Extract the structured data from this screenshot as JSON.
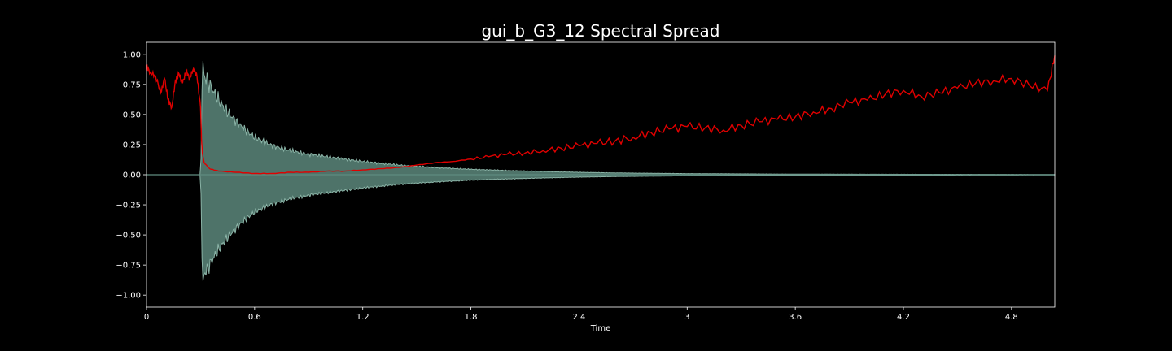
{
  "chart_data": {
    "type": "line",
    "title": "gui_b_G3_12 Spectral Spread",
    "subtitle": "",
    "xlabel": "Time",
    "ylabel": "",
    "xlim": [
      0,
      5.04
    ],
    "ylim": [
      -1.1,
      1.1
    ],
    "x_ticks": [
      0,
      0.6,
      1.2,
      1.8,
      2.4,
      3.0,
      3.6,
      4.2,
      4.8
    ],
    "x_tick_labels": [
      "0",
      "0.6",
      "1.2",
      "1.8",
      "2.4",
      "3",
      "3.6",
      "4.2",
      "4.8"
    ],
    "y_ticks": [
      1.0,
      0.75,
      0.5,
      0.25,
      0.0,
      -0.25,
      -0.5,
      -0.75,
      -1.0
    ],
    "y_tick_labels": [
      "1.00",
      "0.75",
      "0.50",
      "0.25",
      "0.00",
      "−0.25",
      "−0.50",
      "−0.75",
      "−1.00"
    ],
    "grid": false,
    "legend": "none",
    "colors": {
      "background": "#000000",
      "axes": "#ffffff",
      "waveform": "#5f8c80",
      "waveform_envelope": "#8ab3a6",
      "spread_line": "#e00000"
    },
    "series": [
      {
        "kind": "waveform_envelope",
        "x": [
          0,
          0.3,
          0.305,
          0.31,
          0.32,
          0.34,
          0.36,
          0.4,
          0.45,
          0.5,
          0.55,
          0.6,
          0.7,
          0.8,
          0.9,
          1.0,
          1.1,
          1.2,
          1.4,
          1.6,
          1.8,
          2.0,
          2.2,
          2.4,
          2.6,
          2.8,
          3.0,
          3.3,
          3.6,
          4.0,
          4.5,
          5.04
        ],
        "values": [
          0.0,
          0.0,
          0.3,
          0.96,
          0.82,
          0.78,
          0.72,
          0.62,
          0.52,
          0.44,
          0.37,
          0.31,
          0.24,
          0.2,
          0.17,
          0.15,
          0.13,
          0.11,
          0.08,
          0.06,
          0.045,
          0.035,
          0.027,
          0.02,
          0.015,
          0.012,
          0.009,
          0.007,
          0.005,
          0.004,
          0.003,
          0.002
        ]
      },
      {
        "kind": "spectral_spread",
        "x": [
          0,
          0.02,
          0.05,
          0.08,
          0.1,
          0.12,
          0.14,
          0.16,
          0.18,
          0.2,
          0.22,
          0.24,
          0.26,
          0.28,
          0.3,
          0.305,
          0.31,
          0.32,
          0.35,
          0.4,
          0.5,
          0.6,
          0.7,
          0.8,
          0.9,
          1.0,
          1.1,
          1.2,
          1.3,
          1.4,
          1.5,
          1.6,
          1.7,
          1.8,
          1.9,
          2.0,
          2.1,
          2.2,
          2.3,
          2.4,
          2.5,
          2.6,
          2.7,
          2.8,
          2.9,
          3.0,
          3.1,
          3.2,
          3.3,
          3.4,
          3.5,
          3.6,
          3.7,
          3.8,
          3.9,
          4.0,
          4.1,
          4.2,
          4.3,
          4.4,
          4.5,
          4.6,
          4.7,
          4.8,
          4.9,
          5.0,
          5.04
        ],
        "values": [
          0.9,
          0.85,
          0.82,
          0.68,
          0.8,
          0.62,
          0.56,
          0.78,
          0.84,
          0.76,
          0.86,
          0.8,
          0.88,
          0.82,
          0.56,
          0.3,
          0.18,
          0.1,
          0.05,
          0.03,
          0.02,
          0.01,
          0.01,
          0.02,
          0.02,
          0.03,
          0.03,
          0.04,
          0.05,
          0.06,
          0.08,
          0.1,
          0.11,
          0.13,
          0.15,
          0.17,
          0.18,
          0.2,
          0.22,
          0.24,
          0.26,
          0.28,
          0.31,
          0.35,
          0.38,
          0.4,
          0.39,
          0.37,
          0.41,
          0.44,
          0.46,
          0.48,
          0.52,
          0.55,
          0.6,
          0.62,
          0.67,
          0.7,
          0.65,
          0.68,
          0.72,
          0.76,
          0.78,
          0.8,
          0.74,
          0.7,
          0.99
        ]
      }
    ]
  }
}
